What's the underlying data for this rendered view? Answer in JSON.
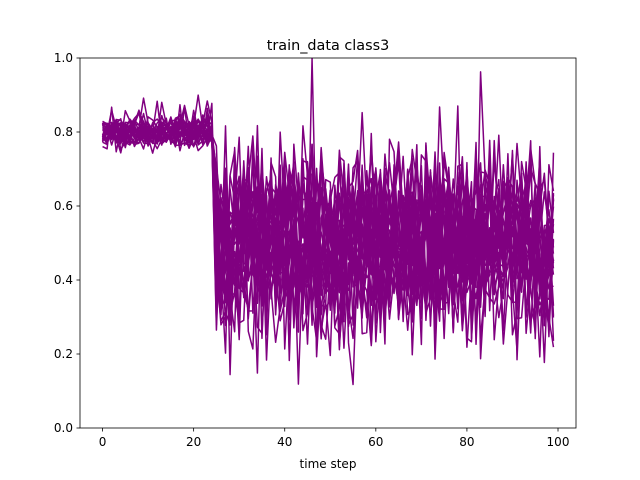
{
  "chart_data": {
    "type": "line",
    "title": "train_data class3",
    "xlabel": "time step",
    "ylabel": "",
    "xlim": [
      -4.95,
      103.95
    ],
    "ylim": [
      0.0,
      1.0
    ],
    "xticks": [
      0,
      20,
      40,
      60,
      80,
      100
    ],
    "xtick_labels": [
      "0",
      "20",
      "40",
      "60",
      "80",
      "100"
    ],
    "yticks": [
      0.0,
      0.2,
      0.4,
      0.6,
      0.8,
      1.0
    ],
    "ytick_labels": [
      "0.0",
      "0.2",
      "0.4",
      "0.6",
      "0.8",
      "1.0"
    ],
    "grid": false,
    "legend": "none",
    "line_color": "#800080",
    "series_count": 30,
    "points_per_series": 100,
    "x": [
      0,
      1,
      2,
      3,
      4,
      5,
      6,
      7,
      8,
      9,
      10,
      11,
      12,
      13,
      14,
      15,
      16,
      17,
      18,
      19,
      20,
      21,
      22,
      23,
      24,
      25,
      26,
      27,
      28,
      29,
      30,
      31,
      32,
      33,
      34,
      35,
      36,
      37,
      38,
      39,
      40,
      41,
      42,
      43,
      44,
      45,
      46,
      47,
      48,
      49,
      50,
      51,
      52,
      53,
      54,
      55,
      56,
      57,
      58,
      59,
      60,
      61,
      62,
      63,
      64,
      65,
      66,
      67,
      68,
      69,
      70,
      71,
      72,
      73,
      74,
      75,
      76,
      77,
      78,
      79,
      80,
      81,
      82,
      83,
      84,
      85,
      86,
      87,
      88,
      89,
      90,
      91,
      92,
      93,
      94,
      95,
      96,
      97,
      98,
      99
    ],
    "series_pattern": {
      "phase_1": {
        "x_range": [
          0,
          24
        ],
        "approx_mean": 0.8,
        "approx_range": [
          0.74,
          0.9
        ]
      },
      "phase_2": {
        "x_range": [
          25,
          99
        ],
        "approx_mean": 0.5,
        "approx_range": [
          0.0,
          1.0
        ]
      }
    }
  }
}
